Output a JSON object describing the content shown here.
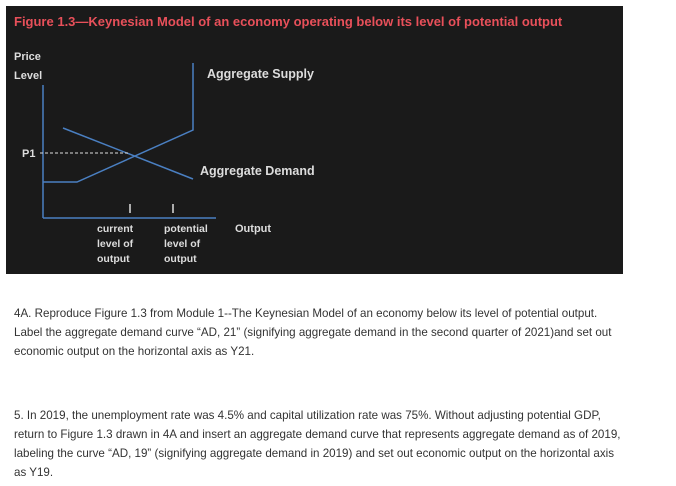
{
  "figure": {
    "title": "Figure 1.3—Keynesian Model of an economy operating below its level of potential output",
    "y_axis_label": [
      "Price",
      "Level"
    ],
    "x_axis_label": "Output",
    "price_label": "P1",
    "supply_label": "Aggregate Supply",
    "demand_label": "Aggregate Demand",
    "current_label": [
      "current",
      "level of",
      "output"
    ],
    "potential_label": [
      "potential",
      "level of",
      "output"
    ]
  },
  "questions": [
    {
      "lines": [
        "4A. Reproduce Figure 1.3 from Module 1--The Keynesian Model of an economy below its level of potential output.",
        "Label the aggregate demand curve “AD, 21” (signifying aggregate demand in the second quarter of 2021)and set out",
        "economic output on the horizontal axis as Y21."
      ]
    },
    {
      "lines": [
        "5.  In 2019, the unemployment rate was 4.5% and capital utilization rate was 75%.  Without adjusting potential GDP,",
        "return to Figure 1.3 drawn in 4A and insert an aggregate demand curve that represents aggregate demand as of 2019,",
        "labeling the curve “AD, 19” (signifying aggregate demand in 2019) and set out economic output on the horizontal axis",
        "as Y19."
      ]
    }
  ]
}
